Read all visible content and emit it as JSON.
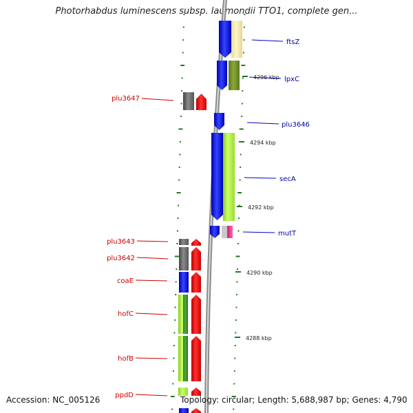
{
  "title": "Photorhabdus luminescens subsp. laumondii TTO1, complete gen...",
  "footer": {
    "accession": "Accession: NC_005126",
    "topology": "Topology: circular; Length: 5,688,987 bp; Genes: 4,790"
  },
  "colors": {
    "right_label": "#0000aa",
    "left_label": "#cc0000",
    "scale": "#227722"
  },
  "right_genes": [
    {
      "label": "ftsZ"
    },
    {
      "label": "lpxC"
    },
    {
      "label": "plu3646"
    },
    {
      "label": "secA"
    },
    {
      "label": "mutT"
    }
  ],
  "left_genes": [
    {
      "label": "plu3647"
    },
    {
      "label": "plu3643"
    },
    {
      "label": "plu3642"
    },
    {
      "label": "coaE"
    },
    {
      "label": "hofC"
    },
    {
      "label": "hofB"
    },
    {
      "label": "ppdD"
    }
  ],
  "scale_ticks": [
    {
      "label": "4296 kbp"
    },
    {
      "label": "4294 kbp"
    },
    {
      "label": "4292 kbp"
    },
    {
      "label": "4290 kbp"
    },
    {
      "label": "4288 kbp"
    }
  ]
}
